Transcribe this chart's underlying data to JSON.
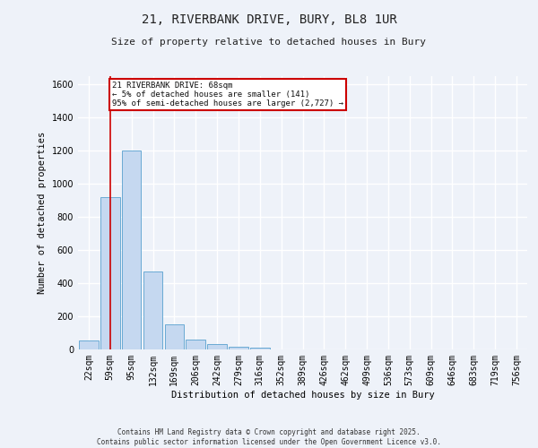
{
  "title_line1": "21, RIVERBANK DRIVE, BURY, BL8 1UR",
  "title_line2": "Size of property relative to detached houses in Bury",
  "xlabel": "Distribution of detached houses by size in Bury",
  "ylabel": "Number of detached properties",
  "bar_labels": [
    "22sqm",
    "59sqm",
    "95sqm",
    "132sqm",
    "169sqm",
    "206sqm",
    "242sqm",
    "279sqm",
    "316sqm",
    "352sqm",
    "389sqm",
    "426sqm",
    "462sqm",
    "499sqm",
    "536sqm",
    "573sqm",
    "609sqm",
    "646sqm",
    "683sqm",
    "719sqm",
    "756sqm"
  ],
  "bar_values": [
    55,
    920,
    1200,
    470,
    150,
    60,
    30,
    15,
    12,
    0,
    0,
    0,
    0,
    0,
    0,
    0,
    0,
    0,
    0,
    0,
    0
  ],
  "bar_color": "#c5d8f0",
  "bar_edge_color": "#6aaad4",
  "ylim": [
    0,
    1650
  ],
  "yticks": [
    0,
    200,
    400,
    600,
    800,
    1000,
    1200,
    1400,
    1600
  ],
  "vline_x": 1.0,
  "vline_color": "#cc0000",
  "annotation_text": "21 RIVERBANK DRIVE: 68sqm\n← 5% of detached houses are smaller (141)\n95% of semi-detached houses are larger (2,727) →",
  "annotation_box_color": "#cc0000",
  "background_color": "#eef2f9",
  "grid_color": "#ffffff",
  "footer_text": "Contains HM Land Registry data © Crown copyright and database right 2025.\nContains public sector information licensed under the Open Government Licence v3.0.",
  "figsize": [
    6.0,
    5.0
  ],
  "dpi": 100
}
